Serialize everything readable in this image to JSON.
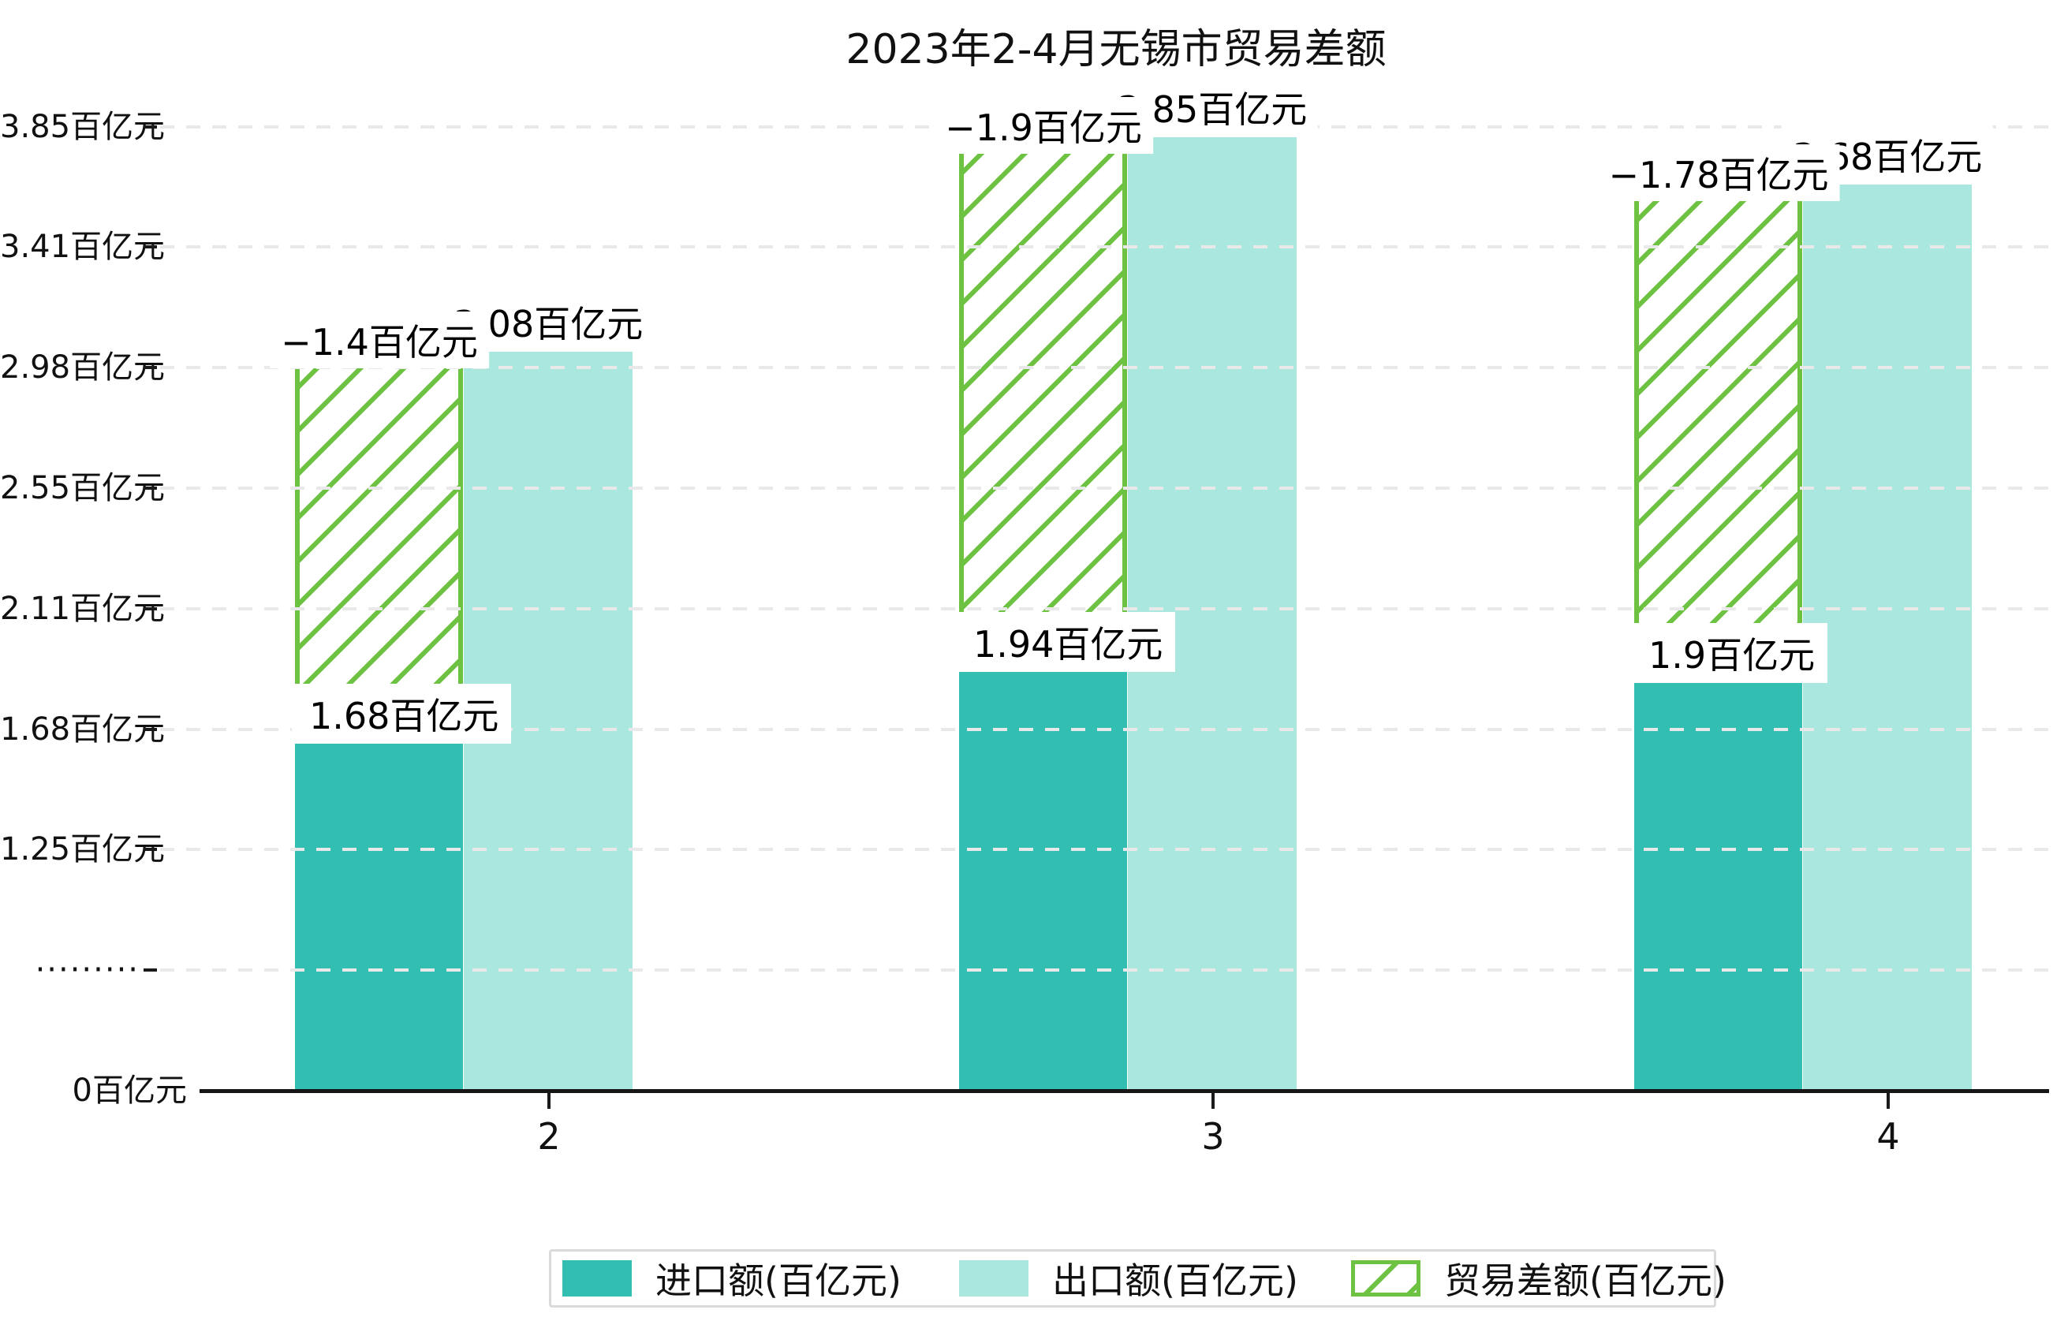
{
  "title": "2023年2-4月无锡市贸易差额",
  "chart_data": {
    "type": "bar",
    "title": "2023年2-4月无锡市贸易差额",
    "categories": [
      "2",
      "3",
      "4"
    ],
    "unit": "百亿元",
    "series": [
      {
        "name": "进口额(百亿元)",
        "values": [
          1.68,
          1.94,
          1.9
        ],
        "labels": [
          "1.68百亿元",
          "1.94百亿元",
          "1.9百亿元"
        ],
        "color": "#32bfb2",
        "style": "solid"
      },
      {
        "name": "出口额(百亿元)",
        "values": [
          3.08,
          3.85,
          3.68
        ],
        "labels": [
          "3.08百亿元",
          "3.85百亿元",
          "3.68百亿元"
        ],
        "color": "#aae8df",
        "style": "solid"
      },
      {
        "name": "贸易差额(百亿元)",
        "values": [
          -1.4,
          -1.9,
          -1.78
        ],
        "labels": [
          "−1.4百亿元",
          "−1.9百亿元",
          "−1.78百亿元"
        ],
        "color": "#6dc241",
        "style": "hatched",
        "note": "floating hatched bar spanning from import top to export top"
      }
    ],
    "yticks": [
      {
        "label": "3.85百亿元",
        "value": 3.85
      },
      {
        "label": "3.41百亿元",
        "value": 3.41
      },
      {
        "label": "2.98百亿元",
        "value": 2.98
      },
      {
        "label": "2.55百亿元",
        "value": 2.55
      },
      {
        "label": "2.11百亿元",
        "value": 2.11
      },
      {
        "label": "1.68百亿元",
        "value": 1.68
      },
      {
        "label": "1.25百亿元",
        "value": 1.25
      },
      {
        "label": "·········",
        "value": null,
        "axis_break": true
      },
      {
        "label": "0百亿元",
        "value": 0
      }
    ],
    "grid": "dashed horizontal, drawn over bars",
    "legend_position": "bottom"
  },
  "legend": {
    "items": [
      {
        "label": "进口额(百亿元)",
        "swatch": "solid-import"
      },
      {
        "label": "出口额(百亿元)",
        "swatch": "solid-export"
      },
      {
        "label": "贸易差额(百亿元)",
        "swatch": "green-hatched"
      }
    ]
  }
}
